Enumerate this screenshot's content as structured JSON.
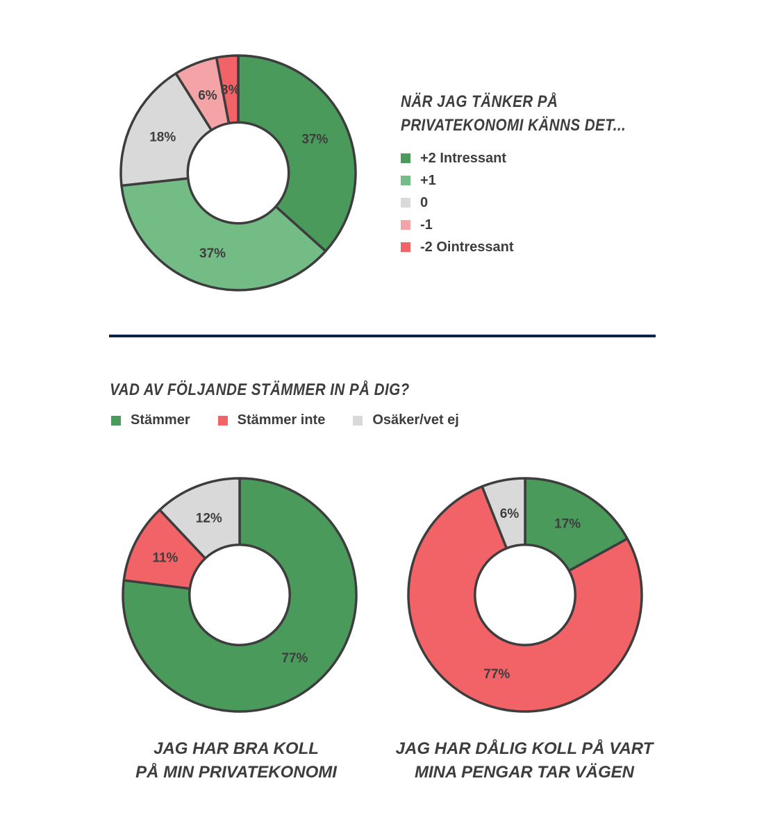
{
  "colors": {
    "dark_green": "#4a9a5c",
    "light_green": "#74bc86",
    "gray": "#d9d9d9",
    "pink": "#f4a3a6",
    "red": "#f26367",
    "outline": "#3d3d3d",
    "divider": "#0e2244"
  },
  "section1": {
    "title_line1": "När jag tänker på",
    "title_line2": "privatekonomi känns det...",
    "legend": [
      "+2 Intressant",
      "+1",
      "0",
      "-1",
      "-2 Ointressant"
    ]
  },
  "section2": {
    "title": "Vad av följande stämmer in på dig?",
    "legend": [
      "Stämmer",
      "Stämmer inte",
      "Osäker/vet ej"
    ],
    "caption1_line1": "Jag har bra koll",
    "caption1_line2": "på min privatekonomi",
    "caption2_line1": "Jag har dålig koll på vart",
    "caption2_line2": "mina pengar tar vägen"
  },
  "chart_data": [
    {
      "type": "pie",
      "title": "När jag tänker på privatekonomi känns det...",
      "categories": [
        "+2 Intressant",
        "+1",
        "0",
        "-1",
        "-2 Ointressant"
      ],
      "values": [
        37,
        37,
        18,
        6,
        3
      ],
      "labels": [
        "37%",
        "37%",
        "18%",
        "6%",
        "3%"
      ],
      "colors": [
        "#4a9a5c",
        "#74bc86",
        "#d9d9d9",
        "#f4a3a6",
        "#f26367"
      ],
      "legend": "right"
    },
    {
      "type": "pie",
      "title": "Jag har bra koll på min privatekonomi",
      "categories": [
        "Stämmer",
        "Stämmer inte",
        "Osäker/vet ej"
      ],
      "values": [
        77,
        11,
        12
      ],
      "labels": [
        "77%",
        "11%",
        "12%"
      ],
      "colors": [
        "#4a9a5c",
        "#f26367",
        "#d9d9d9"
      ],
      "legend": "top"
    },
    {
      "type": "pie",
      "title": "Jag har dålig koll på vart mina pengar tar vägen",
      "categories": [
        "Stämmer",
        "Stämmer inte",
        "Osäker/vet ej"
      ],
      "values": [
        17,
        77,
        6
      ],
      "labels": [
        "17%",
        "77%",
        "6%"
      ],
      "colors": [
        "#4a9a5c",
        "#f26367",
        "#d9d9d9"
      ],
      "legend": "top"
    }
  ]
}
